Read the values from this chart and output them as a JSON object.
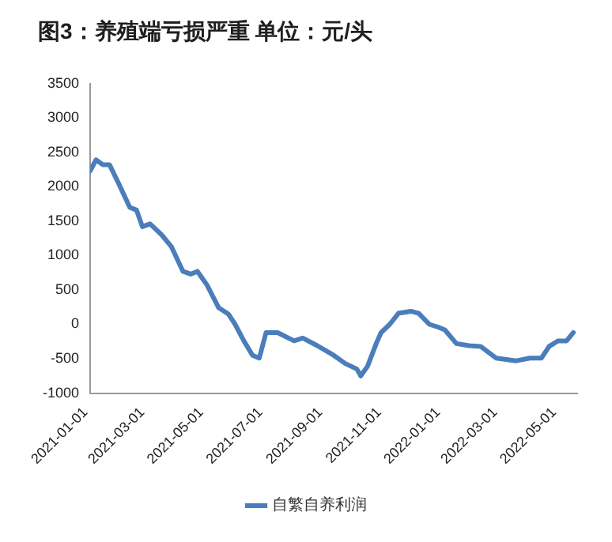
{
  "chart_data": {
    "type": "line",
    "title": "图3：养殖端亏损严重 单位：元/头",
    "x": [
      "2021-01-01",
      "2021-01-07",
      "2021-01-14",
      "2021-01-21",
      "2021-01-31",
      "2021-02-11",
      "2021-02-18",
      "2021-02-24",
      "2021-03-04",
      "2021-03-16",
      "2021-03-26",
      "2021-04-07",
      "2021-04-15",
      "2021-04-22",
      "2021-05-02",
      "2021-05-14",
      "2021-05-24",
      "2021-05-31",
      "2021-06-09",
      "2021-06-18",
      "2021-06-25",
      "2021-07-02",
      "2021-07-14",
      "2021-07-31",
      "2021-08-09",
      "2021-08-24",
      "2021-09-10",
      "2021-09-22",
      "2021-10-04",
      "2021-10-08",
      "2021-10-15",
      "2021-10-24",
      "2021-10-29",
      "2021-11-07",
      "2021-11-16",
      "2021-11-29",
      "2021-12-07",
      "2021-12-18",
      "2021-12-27",
      "2022-01-03",
      "2022-01-15",
      "2022-01-28",
      "2022-02-09",
      "2022-02-25",
      "2022-03-18",
      "2022-04-01",
      "2022-04-13",
      "2022-04-21",
      "2022-04-30",
      "2022-05-09",
      "2022-05-16"
    ],
    "series": [
      {
        "name": "自繁自养利润",
        "color": "#4a7ebb",
        "values": [
          2230,
          2390,
          2320,
          2320,
          2030,
          1700,
          1660,
          1420,
          1460,
          1300,
          1130,
          770,
          730,
          770,
          570,
          240,
          150,
          0,
          -240,
          -450,
          -490,
          -120,
          -120,
          -240,
          -200,
          -310,
          -450,
          -570,
          -650,
          -750,
          -610,
          -280,
          -120,
          0,
          160,
          190,
          160,
          0,
          -40,
          -80,
          -280,
          -310,
          -320,
          -490,
          -530,
          -490,
          -490,
          -320,
          -240,
          -240,
          -120
        ]
      }
    ],
    "xlim": [
      "2021-01-01",
      "2022-05-20"
    ],
    "xticks": [
      "2021-01-01",
      "2021-03-01",
      "2021-05-01",
      "2021-07-01",
      "2021-09-01",
      "2021-11-01",
      "2022-01-01",
      "2022-03-01",
      "2022-05-01"
    ],
    "ylim": [
      -1000,
      3500
    ],
    "yticks": [
      -1000,
      -500,
      0,
      500,
      1000,
      1500,
      2000,
      2500,
      3000,
      3500
    ],
    "grid": false,
    "legend": "bottom",
    "marker": "none",
    "line_style": "solid"
  }
}
